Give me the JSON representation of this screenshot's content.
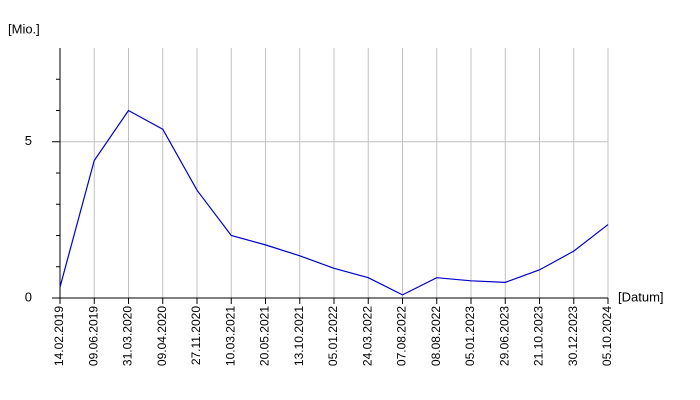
{
  "chart_data": {
    "type": "line",
    "y_label": "[Mio.]",
    "x_label": "[Datum]",
    "categories": [
      "14.02.2019",
      "09.06.2019",
      "31.03.2020",
      "09.04.2020",
      "27.11.2020",
      "10.03.2021",
      "20.05.2021",
      "13.10.2021",
      "05.01.2022",
      "24.03.2022",
      "07.08.2022",
      "08.08.2022",
      "05.01.2023",
      "29.06.2023",
      "21.10.2023",
      "30.12.2023",
      "05.10.2024"
    ],
    "series": [
      {
        "color": "#0000cc",
        "values": [
          0.35,
          4.4,
          6.0,
          5.4,
          3.45,
          2.0,
          1.7,
          1.35,
          0.95,
          0.65,
          0.1,
          0.65,
          0.55,
          0.5,
          0.9,
          1.5,
          2.35
        ]
      }
    ],
    "ylim": [
      0,
      8
    ],
    "yticks": [
      0,
      5
    ],
    "y_minor_ticks": [
      1,
      2,
      3,
      4,
      6,
      7
    ],
    "grid": true
  }
}
